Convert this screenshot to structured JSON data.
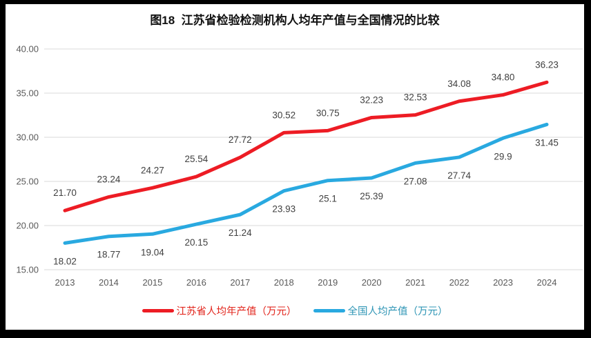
{
  "title": "图18  江苏省检验检测机构人均年产值与全国情况的比较",
  "chart_data": {
    "type": "line",
    "title": "图18  江苏省检验检测机构人均年产值与全国情况的比较",
    "categories": [
      "2013",
      "2014",
      "2015",
      "2016",
      "2017",
      "2018",
      "2019",
      "2020",
      "2021",
      "2022",
      "2023",
      "2024"
    ],
    "series": [
      {
        "name": "江苏省人均年产值（万元）",
        "color": "#ED1C24",
        "legend_text_color": "#E2251C",
        "values": [
          21.7,
          23.24,
          24.27,
          25.54,
          27.72,
          30.52,
          30.75,
          32.23,
          32.53,
          34.08,
          34.8,
          36.23
        ],
        "value_labels": [
          "21.70",
          "23.24",
          "24.27",
          "25.54",
          "27.72",
          "30.52",
          "30.75",
          "32.23",
          "32.53",
          "34.08",
          "34.80",
          "36.23"
        ],
        "label_position": "above"
      },
      {
        "name": "全国人均产值（万元）",
        "color": "#29A9E0",
        "legend_text_color": "#2E95B5",
        "values": [
          18.02,
          18.77,
          19.04,
          20.15,
          21.24,
          23.93,
          25.1,
          25.39,
          27.08,
          27.74,
          29.9,
          31.45
        ],
        "value_labels": [
          "18.02",
          "18.77",
          "19.04",
          "20.15",
          "21.24",
          "23.93",
          "25.1",
          "25.39",
          "27.08",
          "27.74",
          "29.9",
          "31.45"
        ],
        "label_position": "below"
      }
    ],
    "xlabel": "",
    "ylabel": "",
    "ylim": [
      15,
      40
    ],
    "ytick_step": 5,
    "yticks": [
      "40.00",
      "35.00",
      "30.00",
      "25.00",
      "20.00",
      "15.00"
    ],
    "grid": "horizontal",
    "legend_position": "bottom",
    "gridline_color": "#D9D9D9",
    "axis_label_color": "#595959",
    "data_label_color": "#3F3F3F",
    "background_color": "#FFFFFF",
    "frame_color": "#000000"
  }
}
